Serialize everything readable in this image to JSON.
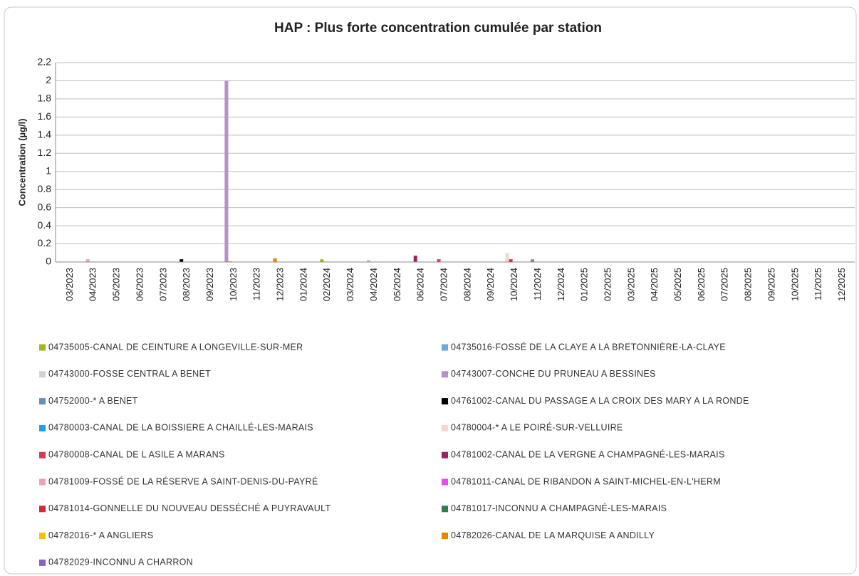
{
  "chart_data": {
    "type": "bar",
    "title": "HAP : Plus forte concentration cumulée par station",
    "y_label": "Concentration (µg/l)",
    "categories": [
      "03/2023",
      "04/2023",
      "05/2023",
      "06/2023",
      "07/2023",
      "08/2023",
      "09/2023",
      "10/2023",
      "11/2023",
      "12/2023",
      "01/2024",
      "02/2024",
      "03/2024",
      "04/2024",
      "05/2024",
      "06/2024",
      "07/2024",
      "08/2024",
      "09/2024",
      "10/2024",
      "11/2024",
      "12/2024",
      "01/2025",
      "02/2025",
      "03/2025",
      "04/2025",
      "05/2025",
      "06/2025",
      "07/2025",
      "08/2025",
      "09/2025",
      "10/2025",
      "11/2025",
      "12/2025"
    ],
    "ylim": [
      0,
      2.2
    ],
    "yticks": [
      0,
      0.2,
      0.4,
      0.6,
      0.8,
      1,
      1.2,
      1.4,
      1.6,
      1.8,
      2,
      2.2
    ],
    "grid": true,
    "series": [
      {
        "name": "04735005-CANAL DE CEINTURE A LONGEVILLE-SUR-MER",
        "color": "#9bbb1c",
        "values": [
          null,
          null,
          null,
          null,
          null,
          null,
          null,
          null,
          null,
          null,
          null,
          0.03,
          null,
          null,
          null,
          null,
          null,
          null,
          null,
          null,
          null,
          null,
          null,
          null,
          null,
          null,
          null,
          null,
          null,
          null,
          null,
          null,
          null,
          null
        ]
      },
      {
        "name": "04735016-FOSSÉ DE LA CLAYE A LA BRETONNIÈRE-LA-CLAYE",
        "color": "#6fa8dc",
        "values": [
          null,
          null,
          null,
          null,
          null,
          null,
          null,
          null,
          null,
          null,
          null,
          null,
          null,
          null,
          null,
          null,
          null,
          null,
          null,
          null,
          null,
          null,
          null,
          null,
          null,
          null,
          null,
          null,
          null,
          null,
          null,
          null,
          null,
          null
        ]
      },
      {
        "name": "04743000-FOSSE CENTRAL A BENET",
        "color": "#d3d3d3",
        "values": [
          null,
          null,
          null,
          null,
          null,
          null,
          null,
          null,
          null,
          null,
          null,
          null,
          null,
          null,
          null,
          null,
          null,
          null,
          null,
          null,
          null,
          null,
          null,
          null,
          null,
          null,
          null,
          null,
          null,
          null,
          null,
          null,
          null,
          null
        ]
      },
      {
        "name": "04743007-CONCHE DU PRUNEAU A BESSINES",
        "color": "#b88fcc",
        "values": [
          null,
          null,
          null,
          null,
          null,
          null,
          null,
          2,
          null,
          null,
          null,
          null,
          null,
          null,
          null,
          null,
          null,
          null,
          null,
          null,
          null,
          null,
          null,
          null,
          null,
          null,
          null,
          null,
          null,
          null,
          null,
          null,
          null,
          null
        ]
      },
      {
        "name": "04752000-* A BENET",
        "color": "#6b8cb3",
        "values": [
          null,
          null,
          null,
          null,
          null,
          null,
          null,
          null,
          null,
          null,
          null,
          null,
          null,
          null,
          null,
          null,
          null,
          null,
          null,
          null,
          0.03,
          null,
          null,
          null,
          null,
          null,
          null,
          null,
          null,
          null,
          null,
          null,
          null,
          null
        ]
      },
      {
        "name": "04761002-CANAL DU PASSAGE A LA CROIX DES MARY A LA RONDE",
        "color": "#000000",
        "values": [
          null,
          null,
          null,
          null,
          null,
          0.03,
          null,
          null,
          null,
          null,
          null,
          null,
          null,
          null,
          null,
          null,
          null,
          null,
          null,
          null,
          null,
          null,
          null,
          null,
          null,
          null,
          null,
          null,
          null,
          null,
          null,
          null,
          null,
          null
        ]
      },
      {
        "name": "04780003-CANAL DE LA BOISSIERE A CHAILLÉ-LES-MARAIS",
        "color": "#1ea0e6",
        "values": [
          null,
          null,
          null,
          null,
          null,
          null,
          null,
          null,
          null,
          null,
          null,
          null,
          null,
          null,
          null,
          null,
          null,
          null,
          null,
          null,
          null,
          null,
          null,
          null,
          null,
          null,
          null,
          null,
          null,
          null,
          null,
          null,
          null,
          null
        ]
      },
      {
        "name": "04780004-* A LE POIRÉ-SUR-VELLUIRE",
        "color": "#f2d9cc",
        "values": [
          null,
          null,
          null,
          null,
          null,
          null,
          null,
          null,
          null,
          null,
          null,
          null,
          null,
          null,
          null,
          null,
          null,
          null,
          null,
          0.1,
          null,
          null,
          null,
          null,
          null,
          null,
          null,
          null,
          null,
          null,
          null,
          null,
          null,
          null
        ]
      },
      {
        "name": "04780008-CANAL DE L ASILE A MARANS",
        "color": "#d6385a",
        "values": [
          null,
          null,
          null,
          null,
          null,
          null,
          null,
          null,
          null,
          null,
          null,
          null,
          null,
          null,
          null,
          null,
          0.03,
          null,
          null,
          null,
          null,
          null,
          null,
          null,
          null,
          null,
          null,
          null,
          null,
          null,
          null,
          null,
          null,
          null
        ]
      },
      {
        "name": "04781002-CANAL DE LA VERGNE A CHAMPAGNÉ-LES-MARAIS",
        "color": "#9a2462",
        "values": [
          null,
          null,
          null,
          null,
          null,
          null,
          null,
          null,
          null,
          null,
          null,
          null,
          null,
          null,
          null,
          0.07,
          null,
          null,
          null,
          null,
          null,
          null,
          null,
          null,
          null,
          null,
          null,
          null,
          null,
          null,
          null,
          null,
          null,
          null
        ]
      },
      {
        "name": "04781009-FOSSÉ DE LA RÉSERVE A SAINT-DENIS-DU-PAYRÉ",
        "color": "#f0a0b8",
        "values": [
          null,
          0.03,
          null,
          null,
          null,
          null,
          null,
          null,
          null,
          null,
          null,
          null,
          null,
          0.02,
          null,
          null,
          null,
          null,
          null,
          null,
          null,
          null,
          null,
          null,
          null,
          null,
          null,
          null,
          null,
          null,
          null,
          null,
          null,
          null
        ]
      },
      {
        "name": "04781011-CANAL DE RIBANDON A SAINT-MICHEL-EN-L'HERM",
        "color": "#e84ce8",
        "values": [
          null,
          null,
          null,
          null,
          null,
          null,
          null,
          null,
          null,
          null,
          null,
          null,
          null,
          null,
          null,
          null,
          null,
          null,
          null,
          null,
          null,
          null,
          null,
          null,
          null,
          null,
          null,
          null,
          null,
          null,
          null,
          null,
          null,
          null
        ]
      },
      {
        "name": "04781014-GONNELLE DU NOUVEAU DESSÉCHÉ A PUYRAVAULT",
        "color": "#d9263a",
        "values": [
          null,
          null,
          null,
          null,
          null,
          null,
          null,
          null,
          null,
          null,
          null,
          null,
          null,
          null,
          null,
          null,
          null,
          null,
          null,
          0.03,
          null,
          null,
          null,
          null,
          null,
          null,
          null,
          null,
          null,
          null,
          null,
          null,
          null,
          null
        ]
      },
      {
        "name": "04781017-INCONNU A CHAMPAGNÉ-LES-MARAIS",
        "color": "#2e7d4f",
        "values": [
          null,
          null,
          null,
          null,
          null,
          null,
          null,
          null,
          null,
          null,
          null,
          null,
          null,
          null,
          null,
          null,
          null,
          null,
          null,
          null,
          null,
          null,
          null,
          null,
          null,
          null,
          null,
          null,
          null,
          null,
          null,
          null,
          null,
          null
        ]
      },
      {
        "name": "04782016-* A ANGLIERS",
        "color": "#f2c200",
        "values": [
          null,
          null,
          null,
          null,
          null,
          null,
          null,
          0.01,
          null,
          null,
          null,
          null,
          null,
          null,
          null,
          null,
          null,
          null,
          null,
          null,
          null,
          null,
          null,
          null,
          null,
          null,
          null,
          null,
          null,
          null,
          null,
          null,
          null,
          null
        ]
      },
      {
        "name": "04782026-CANAL DE LA MARQUISE A ANDILLY",
        "color": "#f08000",
        "values": [
          null,
          null,
          null,
          null,
          null,
          null,
          null,
          null,
          null,
          0.04,
          null,
          null,
          null,
          null,
          null,
          null,
          null,
          null,
          null,
          null,
          null,
          null,
          null,
          null,
          null,
          null,
          null,
          null,
          null,
          null,
          null,
          null,
          null,
          null
        ]
      },
      {
        "name": "04782029-INCONNU A CHARRON",
        "color": "#8c5cc8",
        "values": [
          null,
          null,
          null,
          null,
          null,
          null,
          null,
          null,
          null,
          null,
          null,
          null,
          null,
          null,
          null,
          null,
          null,
          null,
          null,
          null,
          null,
          null,
          null,
          null,
          null,
          null,
          null,
          null,
          null,
          null,
          null,
          null,
          null,
          null
        ]
      }
    ]
  }
}
